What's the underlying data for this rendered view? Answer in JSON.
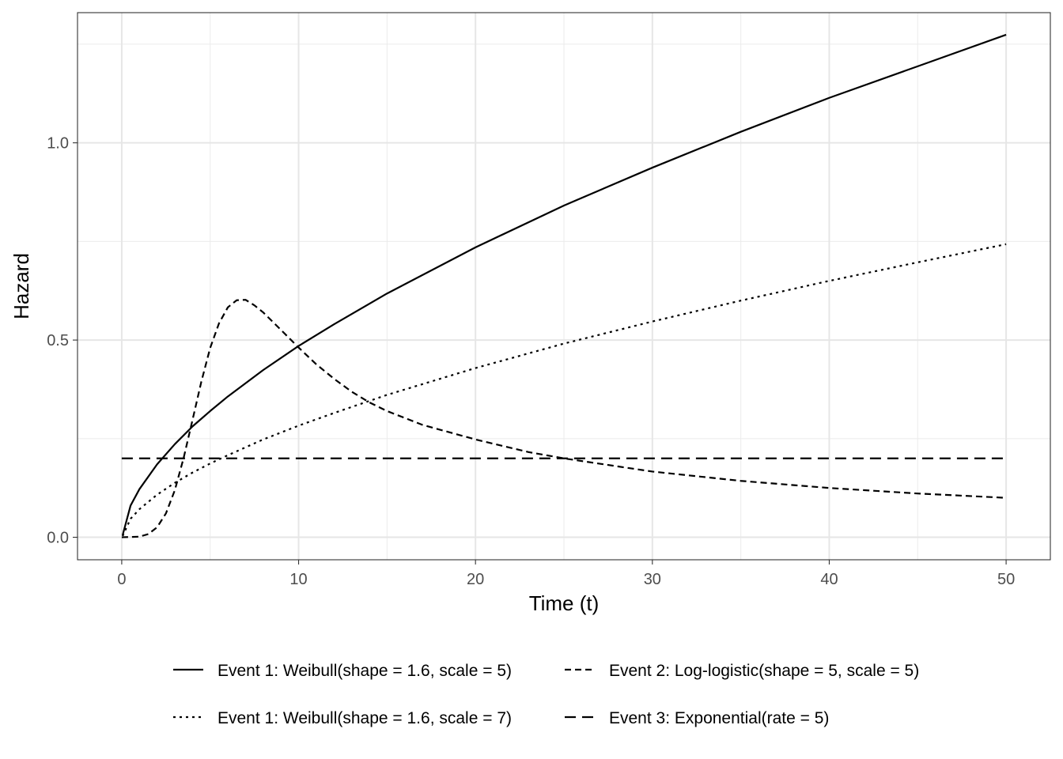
{
  "chart_data": {
    "type": "line",
    "title": "",
    "xlabel": "Time (t)",
    "ylabel": "Hazard",
    "xlim": [
      -2.5,
      52.5
    ],
    "ylim": [
      -0.057,
      1.33
    ],
    "x_ticks": [
      0,
      10,
      20,
      30,
      40,
      50
    ],
    "x_tick_labels": [
      "0",
      "10",
      "20",
      "30",
      "40",
      "50"
    ],
    "y_ticks": [
      0.0,
      0.5,
      1.0
    ],
    "y_tick_labels": [
      "0.0",
      "0.5",
      "1.0"
    ],
    "grid": true,
    "legend_position": "bottom",
    "series": [
      {
        "name": "Event 1: Weibull(shape = 1.6, scale = 5)",
        "linetype": "solid",
        "color": "#000000",
        "x": [
          0.05,
          0.5,
          1,
          2,
          3,
          4,
          5,
          6,
          8,
          10,
          12,
          15,
          20,
          25,
          30,
          35,
          40,
          45,
          50
        ],
        "y": [
          0.0051,
          0.0804,
          0.122,
          0.185,
          0.236,
          0.281,
          0.32,
          0.357,
          0.424,
          0.485,
          0.54,
          0.618,
          0.735,
          0.841,
          0.937,
          1.028,
          1.114,
          1.194,
          1.274
        ]
      },
      {
        "name": "Event 1: Weibull(shape = 1.6, scale = 7)",
        "linetype": "dotted",
        "color": "#000000",
        "x": [
          0.05,
          0.5,
          1,
          2,
          3,
          4,
          5,
          6,
          8,
          10,
          12,
          15,
          20,
          25,
          30,
          35,
          40,
          45,
          50
        ],
        "y": [
          0.0031,
          0.0469,
          0.0712,
          0.108,
          0.138,
          0.164,
          0.187,
          0.208,
          0.248,
          0.283,
          0.315,
          0.361,
          0.429,
          0.491,
          0.547,
          0.6,
          0.65,
          0.697,
          0.743
        ]
      },
      {
        "name": "Event 2: Log-logistic(shape = 5, scale = 5)",
        "linetype": "dashed",
        "color": "#000000",
        "x": [
          0,
          1,
          1.5,
          2,
          2.5,
          3,
          3.5,
          4,
          4.5,
          5,
          5.5,
          6,
          6.5,
          7,
          7.5,
          8,
          9,
          10,
          11,
          12,
          13,
          14,
          15,
          17,
          20,
          23,
          25,
          30,
          35,
          40,
          45,
          50
        ],
        "y": [
          0,
          0.0016,
          0.0081,
          0.0254,
          0.0606,
          0.1191,
          0.2012,
          0.297,
          0.3944,
          0.48,
          0.5425,
          0.583,
          0.601,
          0.602,
          0.588,
          0.57,
          0.5258,
          0.481,
          0.4385,
          0.402,
          0.369,
          0.342,
          0.32,
          0.285,
          0.248,
          0.216,
          0.2,
          0.1666,
          0.143,
          0.125,
          0.111,
          0.1
        ]
      },
      {
        "name": "Event 3: Exponential(rate = 5)",
        "linetype": "longdash",
        "color": "#000000",
        "x": [
          0,
          50
        ],
        "y": [
          0.2,
          0.2
        ]
      }
    ]
  }
}
